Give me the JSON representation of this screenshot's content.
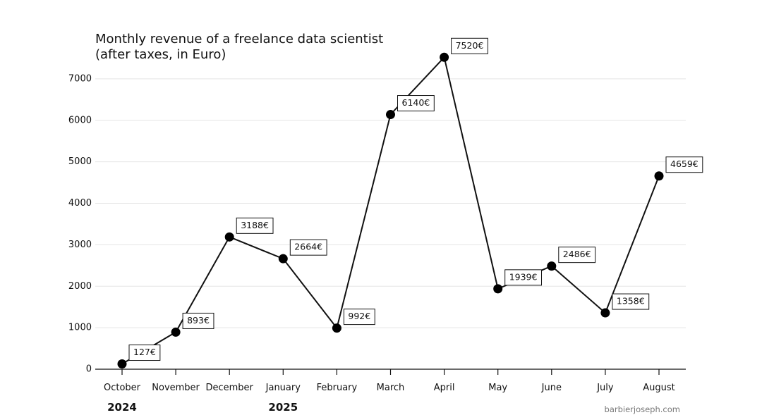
{
  "chart_data": {
    "type": "line",
    "title_lines": [
      "Monthly revenue of a freelance data scientist",
      "(after taxes, in Euro)"
    ],
    "xlabel": "",
    "ylabel": "",
    "categories": [
      "October",
      "November",
      "December",
      "January",
      "February",
      "March",
      "April",
      "May",
      "June",
      "July",
      "August"
    ],
    "values": [
      127,
      893,
      3188,
      2664,
      992,
      6140,
      7520,
      1939,
      2486,
      1358,
      4659
    ],
    "data_labels": [
      "127€",
      "893€",
      "3188€",
      "2664€",
      "992€",
      "6140€",
      "7520€",
      "1939€",
      "2486€",
      "1358€",
      "4659€"
    ],
    "ylim": [
      0,
      7500
    ],
    "yticks": [
      0,
      1000,
      2000,
      3000,
      4000,
      5000,
      6000,
      7000
    ],
    "ytick_labels": [
      "0",
      "1000",
      "2000",
      "3000",
      "4000",
      "5000",
      "6000",
      "7000"
    ],
    "year_labels": [
      {
        "text": "2024",
        "category": "October"
      },
      {
        "text": "2025",
        "category": "January"
      }
    ],
    "grid": "horizontal",
    "legend": "none",
    "credit": "barbierjoseph.com",
    "colors": {
      "line": "#111111",
      "marker": "#000000",
      "grid": "#e5e5e5",
      "credit": "#777777"
    }
  }
}
